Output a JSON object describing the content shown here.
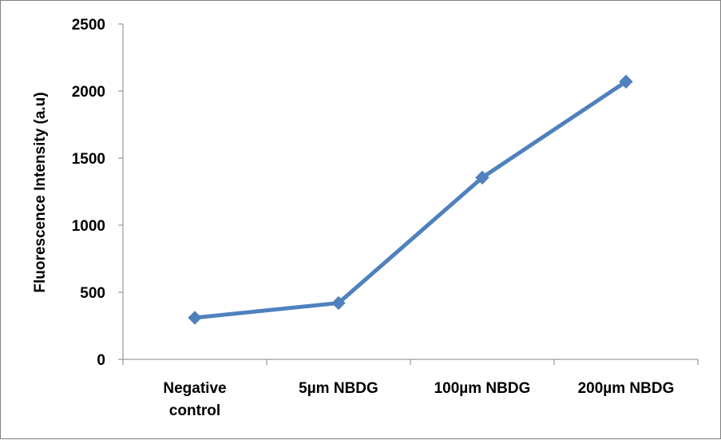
{
  "chart_data": {
    "type": "line",
    "title": "",
    "xlabel": "",
    "ylabel": "Fluorescence Intensity (a.u)",
    "categories": [
      [
        "Negative",
        "control"
      ],
      [
        "5µm NBDG"
      ],
      [
        "100µm NBDG"
      ],
      [
        "200µm NBDG"
      ]
    ],
    "series": [
      {
        "values": [
          310,
          420,
          1355,
          2070
        ]
      }
    ],
    "ylim": [
      0,
      2500
    ],
    "yticks": [
      0,
      500,
      1000,
      1500,
      2000,
      2500
    ],
    "grid": false,
    "legend": "none",
    "marker": "diamond",
    "colors": {
      "series": "#4F81BD",
      "axis": "#868686",
      "text": "#000000"
    }
  }
}
